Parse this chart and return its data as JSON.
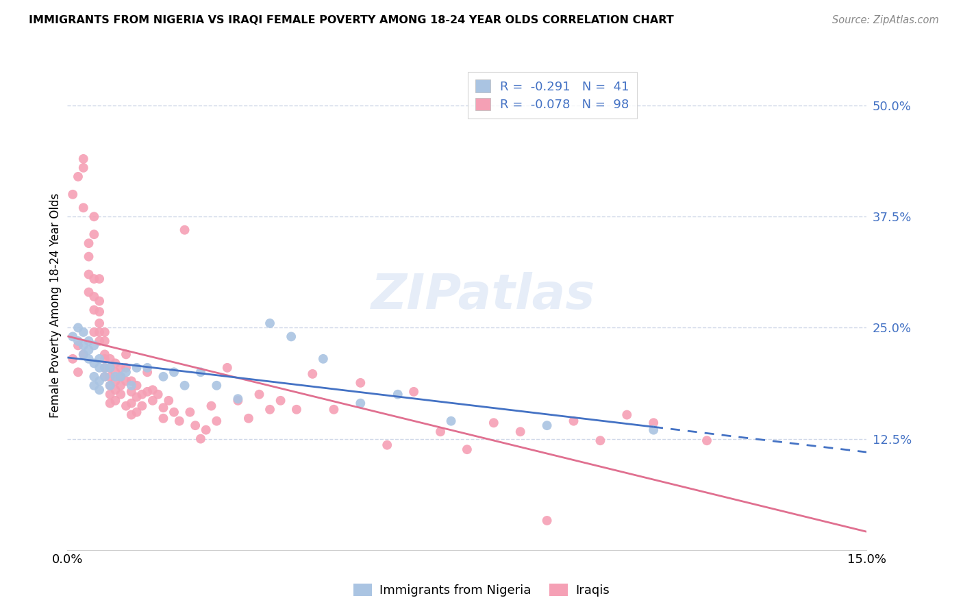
{
  "title": "IMMIGRANTS FROM NIGERIA VS IRAQI FEMALE POVERTY AMONG 18-24 YEAR OLDS CORRELATION CHART",
  "source": "Source: ZipAtlas.com",
  "ylabel": "Female Poverty Among 18-24 Year Olds",
  "ytick_labels": [
    "50.0%",
    "37.5%",
    "25.0%",
    "12.5%"
  ],
  "ytick_values": [
    0.5,
    0.375,
    0.25,
    0.125
  ],
  "xlim": [
    0.0,
    0.15
  ],
  "ylim": [
    0.0,
    0.55
  ],
  "xticklabels_left": "0.0%",
  "xticklabels_right": "15.0%",
  "legend_r_nigeria": "-0.291",
  "legend_n_nigeria": "41",
  "legend_r_iraqi": "-0.078",
  "legend_n_iraqi": "98",
  "nigeria_color": "#aac4e2",
  "iraqi_color": "#f5a0b5",
  "nigeria_line_color": "#4472c4",
  "iraqi_line_color": "#e07090",
  "grid_color": "#d0d8e8",
  "watermark": "ZIPatlas",
  "nigeria_x": [
    0.001,
    0.002,
    0.002,
    0.003,
    0.003,
    0.003,
    0.004,
    0.004,
    0.004,
    0.005,
    0.005,
    0.005,
    0.005,
    0.006,
    0.006,
    0.006,
    0.006,
    0.007,
    0.007,
    0.008,
    0.008,
    0.009,
    0.01,
    0.011,
    0.012,
    0.013,
    0.015,
    0.018,
    0.02,
    0.022,
    0.025,
    0.028,
    0.032,
    0.038,
    0.042,
    0.048,
    0.055,
    0.062,
    0.072,
    0.09,
    0.11
  ],
  "nigeria_y": [
    0.24,
    0.25,
    0.235,
    0.23,
    0.245,
    0.22,
    0.235,
    0.215,
    0.225,
    0.23,
    0.21,
    0.195,
    0.185,
    0.215,
    0.205,
    0.19,
    0.18,
    0.205,
    0.195,
    0.205,
    0.185,
    0.195,
    0.195,
    0.2,
    0.185,
    0.205,
    0.205,
    0.195,
    0.2,
    0.185,
    0.2,
    0.185,
    0.17,
    0.255,
    0.24,
    0.215,
    0.165,
    0.175,
    0.145,
    0.14,
    0.135
  ],
  "iraqi_x": [
    0.001,
    0.001,
    0.002,
    0.002,
    0.002,
    0.003,
    0.003,
    0.003,
    0.003,
    0.004,
    0.004,
    0.004,
    0.004,
    0.005,
    0.005,
    0.005,
    0.005,
    0.005,
    0.005,
    0.006,
    0.006,
    0.006,
    0.006,
    0.006,
    0.006,
    0.007,
    0.007,
    0.007,
    0.007,
    0.007,
    0.007,
    0.008,
    0.008,
    0.008,
    0.008,
    0.008,
    0.008,
    0.009,
    0.009,
    0.009,
    0.009,
    0.009,
    0.01,
    0.01,
    0.01,
    0.01,
    0.011,
    0.011,
    0.011,
    0.011,
    0.012,
    0.012,
    0.012,
    0.012,
    0.013,
    0.013,
    0.013,
    0.014,
    0.014,
    0.015,
    0.015,
    0.016,
    0.016,
    0.017,
    0.018,
    0.018,
    0.019,
    0.02,
    0.021,
    0.022,
    0.023,
    0.024,
    0.025,
    0.026,
    0.027,
    0.028,
    0.03,
    0.032,
    0.034,
    0.036,
    0.038,
    0.04,
    0.043,
    0.046,
    0.05,
    0.055,
    0.06,
    0.065,
    0.07,
    0.075,
    0.08,
    0.085,
    0.09,
    0.095,
    0.1,
    0.105,
    0.11,
    0.12
  ],
  "iraqi_y": [
    0.215,
    0.4,
    0.42,
    0.23,
    0.2,
    0.44,
    0.43,
    0.385,
    0.22,
    0.345,
    0.33,
    0.31,
    0.29,
    0.375,
    0.355,
    0.305,
    0.285,
    0.27,
    0.245,
    0.305,
    0.28,
    0.268,
    0.255,
    0.245,
    0.235,
    0.245,
    0.235,
    0.22,
    0.215,
    0.205,
    0.195,
    0.215,
    0.205,
    0.195,
    0.185,
    0.175,
    0.165,
    0.21,
    0.2,
    0.19,
    0.18,
    0.168,
    0.205,
    0.195,
    0.185,
    0.175,
    0.22,
    0.205,
    0.19,
    0.162,
    0.19,
    0.178,
    0.165,
    0.152,
    0.185,
    0.172,
    0.155,
    0.175,
    0.162,
    0.2,
    0.178,
    0.18,
    0.168,
    0.175,
    0.16,
    0.148,
    0.168,
    0.155,
    0.145,
    0.36,
    0.155,
    0.14,
    0.125,
    0.135,
    0.162,
    0.145,
    0.205,
    0.168,
    0.148,
    0.175,
    0.158,
    0.168,
    0.158,
    0.198,
    0.158,
    0.188,
    0.118,
    0.178,
    0.133,
    0.113,
    0.143,
    0.133,
    0.033,
    0.145,
    0.123,
    0.152,
    0.143,
    0.123
  ]
}
